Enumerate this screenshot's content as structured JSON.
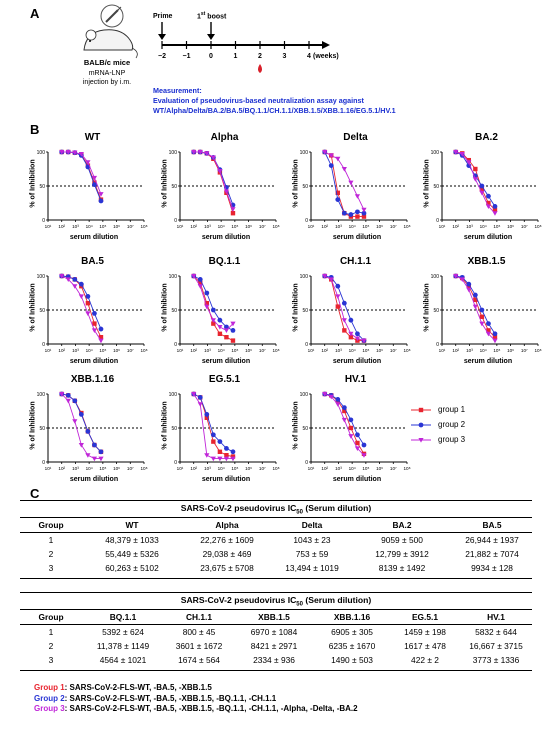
{
  "panel_a": {
    "letter": "A",
    "mouse_label": "BALB/c mice",
    "injection_label_1": "mRNA-LNP",
    "injection_label_2": "injection by i.m.",
    "prime_label": "Prime",
    "boost_label_main": "1",
    "boost_label_sup": "st",
    "boost_label_tail": " boost",
    "ticks": [
      "−2",
      "−1",
      "0",
      "1",
      "2",
      "3",
      "4"
    ],
    "weeks_label": "(weeks)",
    "measurement_title": "Measurement:",
    "measurement_line1": "Evaluation of pseudovirus-based neutralization assay against",
    "measurement_line2": "WT/Alpha/Delta/BA.2/BA.5/BQ.1.1/CH.1.1/XBB.1.5/XBB.1.16/EG.5.1/HV.1",
    "blood_drop_color": "#d8202a"
  },
  "panel_b": {
    "letter": "B",
    "y_axis_title": "% of Inhibition",
    "x_axis_title": "serum dilution",
    "legend": [
      {
        "label": "group 1",
        "color": "#e8242f",
        "marker": "square"
      },
      {
        "label": "group 2",
        "color": "#2a35d4",
        "marker": "circle"
      },
      {
        "label": "group 3",
        "color": "#c026d8",
        "marker": "triangle-down"
      }
    ]
  },
  "chart_data": [
    {
      "type": "line",
      "title": "WT",
      "xlabel": "serum dilution",
      "ylabel": "% of Inhibition",
      "x_scale": "log",
      "xlim": [
        10,
        100000000
      ],
      "ylim": [
        0,
        100
      ],
      "yticks": [
        0,
        50,
        100
      ],
      "xticks": [
        "10¹",
        "10²",
        "10³",
        "10⁴",
        "10⁵",
        "10⁶",
        "10⁷",
        "10⁸"
      ],
      "reference_line": 50,
      "x": [
        100,
        300,
        900,
        2700,
        8100,
        24300,
        72900
      ],
      "series": [
        {
          "name": "group 1",
          "values": [
            100,
            100,
            99,
            96,
            80,
            55,
            30
          ]
        },
        {
          "name": "group 2",
          "values": [
            100,
            100,
            99,
            95,
            78,
            52,
            28
          ]
        },
        {
          "name": "group 3",
          "values": [
            100,
            100,
            99,
            97,
            85,
            62,
            38
          ]
        }
      ]
    },
    {
      "type": "line",
      "title": "Alpha",
      "xlabel": "serum dilution",
      "ylabel": "% of Inhibition",
      "x_scale": "log",
      "xlim": [
        10,
        100000000
      ],
      "ylim": [
        0,
        100
      ],
      "yticks": [
        0,
        50,
        100
      ],
      "xticks": [
        "10¹",
        "10²",
        "10³",
        "10⁴",
        "10⁵",
        "10⁶",
        "10⁷",
        "10⁸"
      ],
      "reference_line": 50,
      "x": [
        100,
        300,
        900,
        2700,
        8100,
        24300,
        72900
      ],
      "series": [
        {
          "name": "group 1",
          "values": [
            100,
            100,
            98,
            90,
            70,
            40,
            10
          ]
        },
        {
          "name": "group 2",
          "values": [
            100,
            100,
            98,
            92,
            74,
            48,
            22
          ]
        },
        {
          "name": "group 3",
          "values": [
            100,
            100,
            98,
            92,
            72,
            42,
            16
          ]
        }
      ]
    },
    {
      "type": "line",
      "title": "Delta",
      "xlabel": "serum dilution",
      "ylabel": "% of Inhibition",
      "x_scale": "log",
      "xlim": [
        10,
        100000000
      ],
      "ylim": [
        0,
        100
      ],
      "yticks": [
        0,
        50,
        100
      ],
      "xticks": [
        "10¹",
        "10²",
        "10³",
        "10⁴",
        "10⁵",
        "10⁶",
        "10⁷",
        "10⁸"
      ],
      "reference_line": 50,
      "x": [
        100,
        300,
        900,
        2700,
        8100,
        24300,
        72900
      ],
      "series": [
        {
          "name": "group 1",
          "values": [
            100,
            95,
            40,
            10,
            5,
            5,
            5
          ]
        },
        {
          "name": "group 2",
          "values": [
            100,
            80,
            30,
            10,
            8,
            12,
            10
          ]
        },
        {
          "name": "group 3",
          "values": [
            100,
            95,
            90,
            75,
            55,
            35,
            15
          ]
        }
      ]
    },
    {
      "type": "line",
      "title": "BA.2",
      "xlabel": "serum dilution",
      "ylabel": "% of Inhibition",
      "x_scale": "log",
      "xlim": [
        10,
        100000000
      ],
      "ylim": [
        0,
        100
      ],
      "yticks": [
        0,
        50,
        100
      ],
      "xticks": [
        "10¹",
        "10²",
        "10³",
        "10⁴",
        "10⁵",
        "10⁶",
        "10⁷",
        "10⁸"
      ],
      "reference_line": 50,
      "x": [
        100,
        300,
        900,
        2700,
        8100,
        24300,
        72900
      ],
      "series": [
        {
          "name": "group 1",
          "values": [
            100,
            98,
            88,
            75,
            45,
            25,
            15
          ]
        },
        {
          "name": "group 2",
          "values": [
            100,
            95,
            80,
            65,
            50,
            35,
            20
          ]
        },
        {
          "name": "group 3",
          "values": [
            100,
            97,
            85,
            60,
            40,
            20,
            10
          ]
        }
      ]
    },
    {
      "type": "line",
      "title": "BA.5",
      "xlabel": "serum dilution",
      "ylabel": "% of Inhibition",
      "x_scale": "log",
      "xlim": [
        10,
        100000000
      ],
      "ylim": [
        0,
        100
      ],
      "yticks": [
        0,
        50,
        100
      ],
      "xticks": [
        "10¹",
        "10²",
        "10³",
        "10⁴",
        "10⁵",
        "10⁶",
        "10⁷",
        "10⁸"
      ],
      "reference_line": 50,
      "x": [
        100,
        300,
        900,
        2700,
        8100,
        24300,
        72900
      ],
      "series": [
        {
          "name": "group 1",
          "values": [
            100,
            99,
            95,
            85,
            60,
            30,
            10
          ]
        },
        {
          "name": "group 2",
          "values": [
            100,
            99,
            95,
            88,
            70,
            45,
            22
          ]
        },
        {
          "name": "group 3",
          "values": [
            100,
            95,
            85,
            70,
            45,
            20,
            5
          ]
        }
      ]
    },
    {
      "type": "line",
      "title": "BQ.1.1",
      "xlabel": "serum dilution",
      "ylabel": "% of Inhibition",
      "x_scale": "log",
      "xlim": [
        10,
        100000000
      ],
      "ylim": [
        0,
        100
      ],
      "yticks": [
        0,
        50,
        100
      ],
      "xticks": [
        "10¹",
        "10²",
        "10³",
        "10⁴",
        "10⁵",
        "10⁶",
        "10⁷",
        "10⁸"
      ],
      "reference_line": 50,
      "x": [
        100,
        300,
        900,
        2700,
        8100,
        24300,
        72900
      ],
      "series": [
        {
          "name": "group 1",
          "values": [
            100,
            90,
            60,
            30,
            15,
            10,
            5
          ]
        },
        {
          "name": "group 2",
          "values": [
            100,
            95,
            75,
            50,
            35,
            25,
            20
          ]
        },
        {
          "name": "group 3",
          "values": [
            100,
            85,
            55,
            35,
            25,
            20,
            30
          ]
        }
      ]
    },
    {
      "type": "line",
      "title": "CH.1.1",
      "xlabel": "serum dilution",
      "ylabel": "% of Inhibition",
      "x_scale": "log",
      "xlim": [
        10,
        100000000
      ],
      "ylim": [
        0,
        100
      ],
      "yticks": [
        0,
        50,
        100
      ],
      "xticks": [
        "10¹",
        "10²",
        "10³",
        "10⁴",
        "10⁵",
        "10⁶",
        "10⁷",
        "10⁸"
      ],
      "reference_line": 50,
      "x": [
        100,
        300,
        900,
        2700,
        8100,
        24300,
        72900
      ],
      "series": [
        {
          "name": "group 1",
          "values": [
            100,
            95,
            55,
            20,
            10,
            5,
            5
          ]
        },
        {
          "name": "group 2",
          "values": [
            100,
            98,
            85,
            60,
            35,
            15,
            5
          ]
        },
        {
          "name": "group 3",
          "values": [
            100,
            95,
            70,
            35,
            15,
            8,
            5
          ]
        }
      ]
    },
    {
      "type": "line",
      "title": "XBB.1.5",
      "xlabel": "serum dilution",
      "ylabel": "% of Inhibition",
      "x_scale": "log",
      "xlim": [
        10,
        100000000
      ],
      "ylim": [
        0,
        100
      ],
      "yticks": [
        0,
        50,
        100
      ],
      "xticks": [
        "10¹",
        "10²",
        "10³",
        "10⁴",
        "10⁵",
        "10⁶",
        "10⁷",
        "10⁸"
      ],
      "reference_line": 50,
      "x": [
        100,
        300,
        900,
        2700,
        8100,
        24300,
        72900
      ],
      "series": [
        {
          "name": "group 1",
          "values": [
            100,
            97,
            85,
            65,
            40,
            20,
            10
          ]
        },
        {
          "name": "group 2",
          "values": [
            100,
            98,
            88,
            72,
            50,
            30,
            15
          ]
        },
        {
          "name": "group 3",
          "values": [
            100,
            95,
            80,
            55,
            30,
            15,
            5
          ]
        }
      ]
    },
    {
      "type": "line",
      "title": "XBB.1.16",
      "xlabel": "serum dilution",
      "ylabel": "% of Inhibition",
      "x_scale": "log",
      "xlim": [
        10,
        100000000
      ],
      "ylim": [
        0,
        100
      ],
      "yticks": [
        0,
        50,
        100
      ],
      "xticks": [
        "10¹",
        "10²",
        "10³",
        "10⁴",
        "10⁵",
        "10⁶",
        "10⁷",
        "10⁸"
      ],
      "reference_line": 50,
      "x": [
        100,
        300,
        900,
        2700,
        8100,
        24300,
        72900
      ],
      "series": [
        {
          "name": "group 1",
          "values": [
            100,
            98,
            90,
            72,
            45,
            25,
            15
          ]
        },
        {
          "name": "group 2",
          "values": [
            100,
            98,
            90,
            70,
            45,
            25,
            15
          ]
        },
        {
          "name": "group 3",
          "values": [
            100,
            90,
            60,
            25,
            10,
            5,
            5
          ]
        }
      ]
    },
    {
      "type": "line",
      "title": "EG.5.1",
      "xlabel": "serum dilution",
      "ylabel": "% of Inhibition",
      "x_scale": "log",
      "xlim": [
        10,
        100000000
      ],
      "ylim": [
        0,
        100
      ],
      "yticks": [
        0,
        50,
        100
      ],
      "xticks": [
        "10¹",
        "10²",
        "10³",
        "10⁴",
        "10⁵",
        "10⁶",
        "10⁷",
        "10⁸"
      ],
      "reference_line": 50,
      "x": [
        100,
        300,
        900,
        2700,
        8100,
        24300,
        72900
      ],
      "series": [
        {
          "name": "group 1",
          "values": [
            100,
            95,
            65,
            30,
            15,
            10,
            8
          ]
        },
        {
          "name": "group 2",
          "values": [
            100,
            95,
            70,
            40,
            30,
            20,
            15
          ]
        },
        {
          "name": "group 3",
          "values": [
            100,
            85,
            10,
            5,
            5,
            5,
            5
          ]
        }
      ]
    },
    {
      "type": "line",
      "title": "HV.1",
      "xlabel": "serum dilution",
      "ylabel": "% of Inhibition",
      "x_scale": "log",
      "xlim": [
        10,
        100000000
      ],
      "ylim": [
        0,
        100
      ],
      "yticks": [
        0,
        50,
        100
      ],
      "xticks": [
        "10¹",
        "10²",
        "10³",
        "10⁴",
        "10⁵",
        "10⁶",
        "10⁷",
        "10⁸"
      ],
      "reference_line": 50,
      "x": [
        100,
        300,
        900,
        2700,
        8100,
        24300,
        72900
      ],
      "series": [
        {
          "name": "group 1",
          "values": [
            100,
            98,
            90,
            75,
            50,
            28,
            12
          ]
        },
        {
          "name": "group 2",
          "values": [
            100,
            98,
            92,
            80,
            62,
            40,
            25
          ]
        },
        {
          "name": "group 3",
          "values": [
            100,
            96,
            85,
            62,
            38,
            20,
            10
          ]
        }
      ]
    }
  ],
  "panel_c": {
    "letter": "C",
    "table_title_main": "SARS-CoV-2 pseudovirus IC",
    "table_title_sub": "50",
    "table_title_tail": " (Serum dilution)",
    "table1": {
      "headers": [
        "Group",
        "WT",
        "Alpha",
        "Delta",
        "BA.2",
        "BA.5"
      ],
      "rows": [
        [
          "1",
          "48,379 ± 1033",
          "22,276 ± 1609",
          "1043 ± 23",
          "9059 ± 500",
          "26,944 ± 1937"
        ],
        [
          "2",
          "55,449 ± 5326",
          "29,038 ± 469",
          "753 ± 59",
          "12,799 ± 3912",
          "21,882 ± 7074"
        ],
        [
          "3",
          "60,263 ± 5102",
          "23,675 ± 5708",
          "13,494 ± 1019",
          "8139 ± 1492",
          "9934 ± 128"
        ]
      ]
    },
    "table2": {
      "headers": [
        "Group",
        "BQ.1.1",
        "CH.1.1",
        "XBB.1.5",
        "XBB.1.16",
        "EG.5.1",
        "HV.1"
      ],
      "rows": [
        [
          "1",
          "5392 ± 624",
          "800 ± 45",
          "6970 ± 1084",
          "6905 ± 305",
          "1459 ± 198",
          "5832 ± 644"
        ],
        [
          "2",
          "11,378 ± 1149",
          "3601 ± 1672",
          "8421 ± 2971",
          "6235 ± 1670",
          "1617 ± 478",
          "16,667 ± 3715"
        ],
        [
          "3",
          "4564 ± 1021",
          "1674 ± 564",
          "2334 ± 936",
          "1490 ± 503",
          "422 ± 2",
          "3773 ± 1336"
        ]
      ]
    },
    "notes": [
      {
        "label": "Group 1",
        "text": ": SARS-CoV-2-FLS-WT, -BA.5, -XBB.1.5",
        "color": "#e8242f"
      },
      {
        "label": "Group 2",
        "text": ": SARS-CoV-2-FLS-WT, -BA.5, -XBB.1.5, -BQ.1.1, -CH.1.1",
        "color": "#2a35d4"
      },
      {
        "label": "Group 3",
        "text": ": SARS-CoV-2-FLS-WT, -BA.5, -XBB.1.5, -BQ.1.1, -CH.1.1, -Alpha, -Delta, -BA.2",
        "color": "#c026d8"
      }
    ]
  }
}
